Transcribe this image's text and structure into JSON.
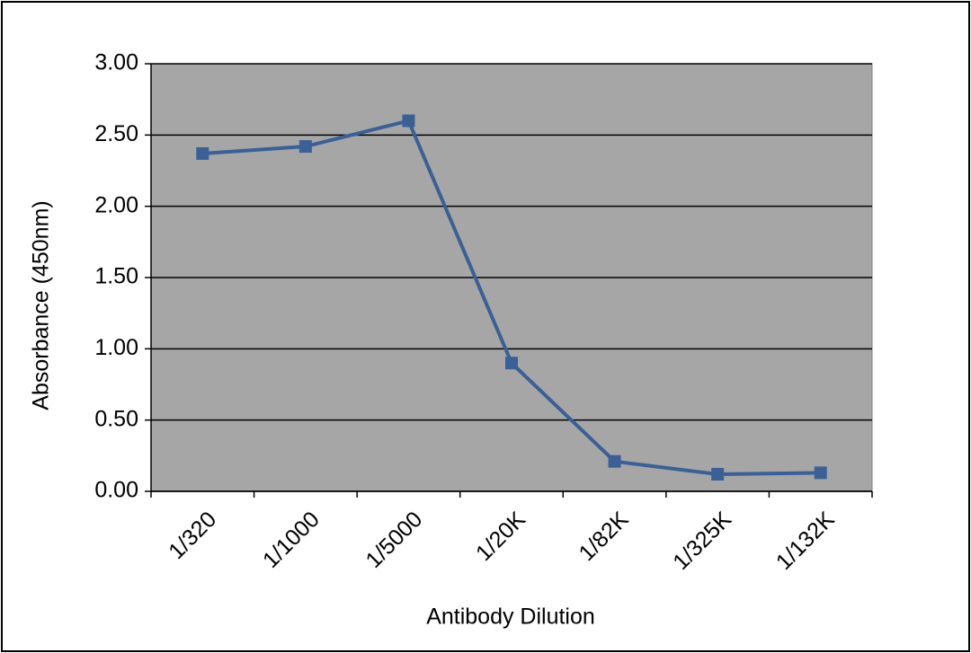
{
  "chart_data": {
    "type": "line",
    "x_label": "Antibody Dilution",
    "y_label": "Absorbance (450nm)",
    "categories": [
      "1/320",
      "1/1000",
      "1/5000",
      "1/20K",
      "1/82K",
      "1/325K",
      "1/132K"
    ],
    "series": [
      {
        "name": "Absorbance",
        "color": "#3b6096",
        "values": [
          2.37,
          2.42,
          2.6,
          0.9,
          0.21,
          0.12,
          0.13
        ]
      }
    ],
    "ylim": [
      0,
      3
    ],
    "yticks": [
      {
        "value": 0,
        "label": "0.00"
      },
      {
        "value": 0.5,
        "label": "0.50"
      },
      {
        "value": 1,
        "label": "1.00"
      },
      {
        "value": 1.5,
        "label": "1.50"
      },
      {
        "value": 2,
        "label": "2.00"
      },
      {
        "value": 2.5,
        "label": "2.50"
      },
      {
        "value": 3,
        "label": "3.00"
      }
    ],
    "grid": true,
    "plot_background": "#a6a6a6"
  }
}
